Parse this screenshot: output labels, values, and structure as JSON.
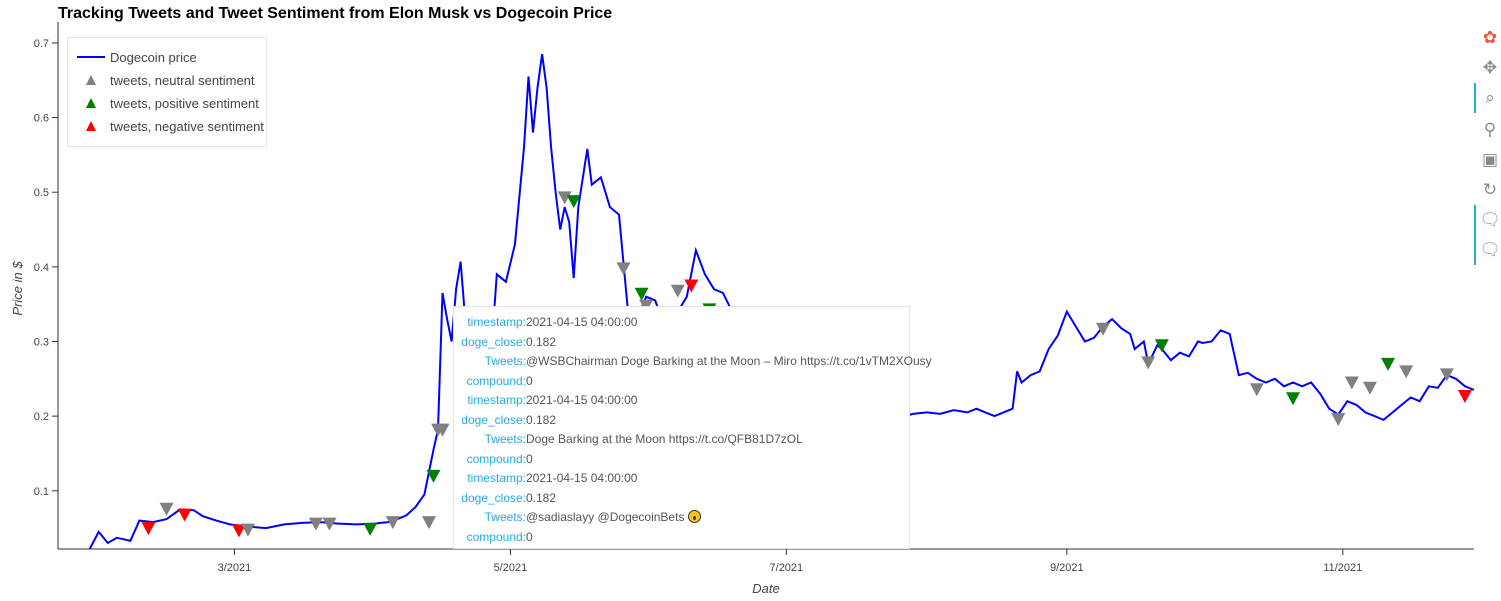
{
  "title": "Tracking Tweets and Tweet Sentiment from Elon Musk vs Dogecoin Price",
  "legend": {
    "items": [
      {
        "label": "Dogecoin price",
        "glyph": "line",
        "color": "#0000ff"
      },
      {
        "label": "tweets, neutral sentiment",
        "glyph": "triangle",
        "color": "#808080"
      },
      {
        "label": "tweets, positive sentiment",
        "glyph": "triangle",
        "color": "#008000"
      },
      {
        "label": "tweets, negative sentiment",
        "glyph": "triangle",
        "color": "#ff0000"
      }
    ]
  },
  "toolbar": {
    "tools": [
      {
        "name": "bokeh-logo-icon",
        "glyph": "✿",
        "active": false
      },
      {
        "name": "pan-tool-icon",
        "glyph": "✥",
        "active": false
      },
      {
        "name": "box-zoom-tool-icon",
        "glyph": "⌕",
        "active": true
      },
      {
        "name": "wheel-zoom-tool-icon",
        "glyph": "⚲",
        "active": false
      },
      {
        "name": "save-tool-icon",
        "glyph": "▣",
        "active": false
      },
      {
        "name": "reset-tool-icon",
        "glyph": "↻",
        "active": false
      },
      {
        "name": "hover-tool-icon",
        "glyph": "🗨",
        "active": true
      },
      {
        "name": "hover-tool-2-icon",
        "glyph": "🗨",
        "active": true
      }
    ]
  },
  "tooltip": {
    "entries": [
      {
        "timestamp": "2021-04-15 04:00:00",
        "doge_close": "0.182",
        "tweets": "@WSBChairman Doge Barking at the Moon – Miro https://t.co/1vTM2XOusy",
        "compound": "0",
        "emoji": false
      },
      {
        "timestamp": "2021-04-15 04:00:00",
        "doge_close": "0.182",
        "tweets": "Doge Barking at the Moon https://t.co/QFB81D7zOL",
        "compound": "0",
        "emoji": false
      },
      {
        "timestamp": "2021-04-15 04:00:00",
        "doge_close": "0.182",
        "tweets": "@sadiaslayy @DogecoinBets ",
        "compound": "0",
        "emoji": true
      }
    ],
    "keys": {
      "timestamp": "timestamp:",
      "doge_close": "doge_close:",
      "tweets": "Tweets:",
      "compound": "compound:"
    }
  },
  "colors": {
    "price_line": "#0000ff",
    "neutral": "#808080",
    "positive": "#008000",
    "negative": "#ff0000",
    "tooltip_key": "#26aae1"
  },
  "chart_data": {
    "type": "line",
    "xlabel": "Date",
    "ylabel": "Price in $",
    "xlim": [
      "2021-01-21",
      "2021-11-30"
    ],
    "ylim": [
      0.022,
      0.72
    ],
    "x_ticks": [
      {
        "date": "2021-03-01",
        "label": "3/2021"
      },
      {
        "date": "2021-05-01",
        "label": "5/2021"
      },
      {
        "date": "2021-07-01",
        "label": "7/2021"
      },
      {
        "date": "2021-09-01",
        "label": "9/2021"
      },
      {
        "date": "2021-11-01",
        "label": "11/2021"
      }
    ],
    "y_ticks": [
      0.1,
      0.2,
      0.3,
      0.4,
      0.5,
      0.6,
      0.7
    ],
    "grid": false,
    "legend_position": "top-left",
    "series": [
      {
        "name": "Dogecoin price",
        "type": "line",
        "points": [
          [
            "2021-01-28",
            0.022
          ],
          [
            "2021-01-30",
            0.045
          ],
          [
            "2021-02-01",
            0.03
          ],
          [
            "2021-02-03",
            0.037
          ],
          [
            "2021-02-06",
            0.033
          ],
          [
            "2021-02-08",
            0.06
          ],
          [
            "2021-02-11",
            0.058
          ],
          [
            "2021-02-14",
            0.062
          ],
          [
            "2021-02-17",
            0.075
          ],
          [
            "2021-02-20",
            0.074
          ],
          [
            "2021-02-22",
            0.066
          ],
          [
            "2021-02-25",
            0.06
          ],
          [
            "2021-02-28",
            0.055
          ],
          [
            "2021-03-04",
            0.052
          ],
          [
            "2021-03-08",
            0.05
          ],
          [
            "2021-03-12",
            0.055
          ],
          [
            "2021-03-16",
            0.057
          ],
          [
            "2021-03-20",
            0.058
          ],
          [
            "2021-03-24",
            0.056
          ],
          [
            "2021-03-28",
            0.055
          ],
          [
            "2021-04-01",
            0.056
          ],
          [
            "2021-04-04",
            0.058
          ],
          [
            "2021-04-06",
            0.062
          ],
          [
            "2021-04-08",
            0.067
          ],
          [
            "2021-04-10",
            0.078
          ],
          [
            "2021-04-12",
            0.095
          ],
          [
            "2021-04-14",
            0.155
          ],
          [
            "2021-04-15",
            0.182
          ],
          [
            "2021-04-16",
            0.365
          ],
          [
            "2021-04-17",
            0.33
          ],
          [
            "2021-04-18",
            0.3
          ],
          [
            "2021-04-19",
            0.37
          ],
          [
            "2021-04-20",
            0.407
          ],
          [
            "2021-04-21",
            0.33
          ],
          [
            "2021-04-24",
            0.26
          ],
          [
            "2021-04-27",
            0.305
          ],
          [
            "2021-04-28",
            0.39
          ],
          [
            "2021-04-30",
            0.38
          ],
          [
            "2021-05-02",
            0.43
          ],
          [
            "2021-05-04",
            0.56
          ],
          [
            "2021-05-05",
            0.655
          ],
          [
            "2021-05-06",
            0.58
          ],
          [
            "2021-05-07",
            0.64
          ],
          [
            "2021-05-08",
            0.685
          ],
          [
            "2021-05-09",
            0.64
          ],
          [
            "2021-05-10",
            0.56
          ],
          [
            "2021-05-11",
            0.5
          ],
          [
            "2021-05-12",
            0.45
          ],
          [
            "2021-05-13",
            0.48
          ],
          [
            "2021-05-14",
            0.46
          ],
          [
            "2021-05-15",
            0.385
          ],
          [
            "2021-05-16",
            0.48
          ],
          [
            "2021-05-18",
            0.558
          ],
          [
            "2021-05-19",
            0.51
          ],
          [
            "2021-05-21",
            0.52
          ],
          [
            "2021-05-23",
            0.48
          ],
          [
            "2021-05-25",
            0.47
          ],
          [
            "2021-05-27",
            0.34
          ],
          [
            "2021-05-29",
            0.33
          ],
          [
            "2021-05-31",
            0.36
          ],
          [
            "2021-06-02",
            0.355
          ],
          [
            "2021-06-04",
            0.32
          ],
          [
            "2021-06-06",
            0.33
          ],
          [
            "2021-06-09",
            0.36
          ],
          [
            "2021-06-11",
            0.422
          ],
          [
            "2021-06-13",
            0.39
          ],
          [
            "2021-06-15",
            0.37
          ],
          [
            "2021-06-17",
            0.365
          ],
          [
            "2021-06-19",
            0.34
          ],
          [
            "2021-06-22",
            0.3
          ],
          [
            "2021-06-25",
            0.29
          ],
          [
            "2021-06-28",
            0.27
          ],
          [
            "2021-07-01",
            0.24
          ],
          [
            "2021-07-04",
            0.235
          ],
          [
            "2021-07-07",
            0.245
          ],
          [
            "2021-07-10",
            0.23
          ],
          [
            "2021-07-13",
            0.215
          ],
          [
            "2021-07-16",
            0.2
          ],
          [
            "2021-07-19",
            0.18
          ],
          [
            "2021-07-21",
            0.175
          ],
          [
            "2021-07-23",
            0.19
          ],
          [
            "2021-07-26",
            0.198
          ],
          [
            "2021-07-29",
            0.203
          ],
          [
            "2021-08-01",
            0.205
          ],
          [
            "2021-08-04",
            0.203
          ],
          [
            "2021-08-07",
            0.208
          ],
          [
            "2021-08-10",
            0.205
          ],
          [
            "2021-08-12",
            0.21
          ],
          [
            "2021-08-14",
            0.205
          ],
          [
            "2021-08-16",
            0.2
          ],
          [
            "2021-08-18",
            0.205
          ],
          [
            "2021-08-20",
            0.21
          ],
          [
            "2021-08-21",
            0.26
          ],
          [
            "2021-08-22",
            0.245
          ],
          [
            "2021-08-24",
            0.255
          ],
          [
            "2021-08-26",
            0.26
          ],
          [
            "2021-08-28",
            0.29
          ],
          [
            "2021-08-30",
            0.308
          ],
          [
            "2021-09-01",
            0.34
          ],
          [
            "2021-09-03",
            0.32
          ],
          [
            "2021-09-05",
            0.3
          ],
          [
            "2021-09-07",
            0.305
          ],
          [
            "2021-09-09",
            0.32
          ],
          [
            "2021-09-11",
            0.33
          ],
          [
            "2021-09-13",
            0.318
          ],
          [
            "2021-09-15",
            0.31
          ],
          [
            "2021-09-16",
            0.29
          ],
          [
            "2021-09-18",
            0.3
          ],
          [
            "2021-09-19",
            0.27
          ],
          [
            "2021-09-21",
            0.295
          ],
          [
            "2021-09-22",
            0.29
          ],
          [
            "2021-09-24",
            0.275
          ],
          [
            "2021-09-26",
            0.285
          ],
          [
            "2021-09-28",
            0.28
          ],
          [
            "2021-09-30",
            0.3
          ],
          [
            "2021-10-01",
            0.298
          ],
          [
            "2021-10-03",
            0.3
          ],
          [
            "2021-10-05",
            0.315
          ],
          [
            "2021-10-07",
            0.31
          ],
          [
            "2021-10-09",
            0.255
          ],
          [
            "2021-10-11",
            0.258
          ],
          [
            "2021-10-13",
            0.25
          ],
          [
            "2021-10-15",
            0.245
          ],
          [
            "2021-10-17",
            0.25
          ],
          [
            "2021-10-19",
            0.24
          ],
          [
            "2021-10-21",
            0.245
          ],
          [
            "2021-10-23",
            0.24
          ],
          [
            "2021-10-25",
            0.245
          ],
          [
            "2021-10-27",
            0.23
          ],
          [
            "2021-10-29",
            0.21
          ],
          [
            "2021-10-31",
            0.202
          ],
          [
            "2021-11-02",
            0.22
          ],
          [
            "2021-11-04",
            0.215
          ],
          [
            "2021-11-06",
            0.205
          ],
          [
            "2021-11-08",
            0.2
          ],
          [
            "2021-11-10",
            0.195
          ],
          [
            "2021-11-12",
            0.205
          ],
          [
            "2021-11-14",
            0.215
          ],
          [
            "2021-11-16",
            0.225
          ],
          [
            "2021-11-18",
            0.22
          ],
          [
            "2021-11-20",
            0.24
          ],
          [
            "2021-11-22",
            0.238
          ],
          [
            "2021-11-24",
            0.255
          ],
          [
            "2021-11-26",
            0.25
          ],
          [
            "2021-11-28",
            0.24
          ],
          [
            "2021-11-30",
            0.235
          ]
        ]
      }
    ],
    "tweet_markers": [
      {
        "date": "2021-02-10",
        "price": 0.05,
        "sentiment": "negative"
      },
      {
        "date": "2021-02-14",
        "price": 0.076,
        "sentiment": "neutral"
      },
      {
        "date": "2021-02-18",
        "price": 0.068,
        "sentiment": "negative"
      },
      {
        "date": "2021-03-02",
        "price": 0.047,
        "sentiment": "negative"
      },
      {
        "date": "2021-03-04",
        "price": 0.048,
        "sentiment": "neutral"
      },
      {
        "date": "2021-03-19",
        "price": 0.056,
        "sentiment": "neutral"
      },
      {
        "date": "2021-03-22",
        "price": 0.056,
        "sentiment": "neutral"
      },
      {
        "date": "2021-03-31",
        "price": 0.049,
        "sentiment": "positive"
      },
      {
        "date": "2021-04-05",
        "price": 0.058,
        "sentiment": "neutral"
      },
      {
        "date": "2021-04-13",
        "price": 0.058,
        "sentiment": "neutral"
      },
      {
        "date": "2021-04-14",
        "price": 0.12,
        "sentiment": "positive"
      },
      {
        "date": "2021-04-15",
        "price": 0.182,
        "sentiment": "neutral"
      },
      {
        "date": "2021-04-16",
        "price": 0.182,
        "sentiment": "neutral"
      },
      {
        "date": "2021-05-13",
        "price": 0.493,
        "sentiment": "neutral"
      },
      {
        "date": "2021-05-15",
        "price": 0.488,
        "sentiment": "positive"
      },
      {
        "date": "2021-05-26",
        "price": 0.398,
        "sentiment": "neutral"
      },
      {
        "date": "2021-05-30",
        "price": 0.364,
        "sentiment": "positive"
      },
      {
        "date": "2021-05-31",
        "price": 0.348,
        "sentiment": "neutral"
      },
      {
        "date": "2021-06-07",
        "price": 0.368,
        "sentiment": "neutral"
      },
      {
        "date": "2021-06-10",
        "price": 0.375,
        "sentiment": "negative"
      },
      {
        "date": "2021-06-14",
        "price": 0.343,
        "sentiment": "positive"
      },
      {
        "date": "2021-06-30",
        "price": 0.245,
        "sentiment": "positive"
      },
      {
        "date": "2021-07-08",
        "price": 0.215,
        "sentiment": "positive"
      },
      {
        "date": "2021-07-12",
        "price": 0.197,
        "sentiment": "neutral"
      },
      {
        "date": "2021-09-09",
        "price": 0.317,
        "sentiment": "neutral"
      },
      {
        "date": "2021-09-19",
        "price": 0.272,
        "sentiment": "neutral"
      },
      {
        "date": "2021-09-22",
        "price": 0.295,
        "sentiment": "positive"
      },
      {
        "date": "2021-10-13",
        "price": 0.236,
        "sentiment": "neutral"
      },
      {
        "date": "2021-10-21",
        "price": 0.224,
        "sentiment": "positive"
      },
      {
        "date": "2021-10-31",
        "price": 0.196,
        "sentiment": "neutral"
      },
      {
        "date": "2021-11-03",
        "price": 0.245,
        "sentiment": "neutral"
      },
      {
        "date": "2021-11-07",
        "price": 0.238,
        "sentiment": "neutral"
      },
      {
        "date": "2021-11-11",
        "price": 0.27,
        "sentiment": "positive"
      },
      {
        "date": "2021-11-15",
        "price": 0.26,
        "sentiment": "neutral"
      },
      {
        "date": "2021-11-24",
        "price": 0.256,
        "sentiment": "neutral"
      },
      {
        "date": "2021-11-28",
        "price": 0.227,
        "sentiment": "negative"
      }
    ]
  }
}
